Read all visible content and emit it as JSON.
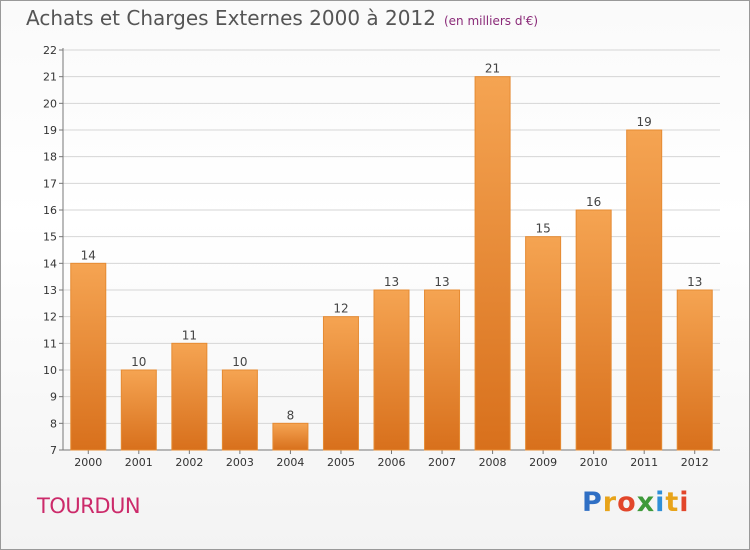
{
  "chart_data": {
    "type": "bar",
    "title": "Achats et Charges Externes 2000 à 2012",
    "unit_note": "(en milliers d'€)",
    "categories": [
      "2000",
      "2001",
      "2002",
      "2003",
      "2004",
      "2005",
      "2006",
      "2007",
      "2008",
      "2009",
      "2010",
      "2011",
      "2012"
    ],
    "values": [
      14,
      10,
      11,
      10,
      8,
      12,
      13,
      13,
      21,
      15,
      16,
      19,
      13
    ],
    "xlabel": "",
    "ylabel": "",
    "ylim": [
      7,
      22
    ],
    "yticks": [
      7,
      8,
      9,
      10,
      11,
      12,
      13,
      14,
      15,
      16,
      17,
      18,
      19,
      20,
      21,
      22
    ],
    "grid": true,
    "bar_color_top": "#f5a452",
    "bar_color_bottom": "#d8701c"
  },
  "place": "TOURDUN",
  "logo": {
    "letters": [
      {
        "ch": "P",
        "color": "#2f6fc4"
      },
      {
        "ch": "r",
        "color": "#e8a41a"
      },
      {
        "ch": "o",
        "color": "#e2462a"
      },
      {
        "ch": "x",
        "color": "#3e9a3a"
      },
      {
        "ch": "i",
        "color": "#2f8fd8"
      },
      {
        "ch": "t",
        "color": "#e8a41a"
      },
      {
        "ch": "i",
        "color": "#e2462a"
      }
    ]
  }
}
